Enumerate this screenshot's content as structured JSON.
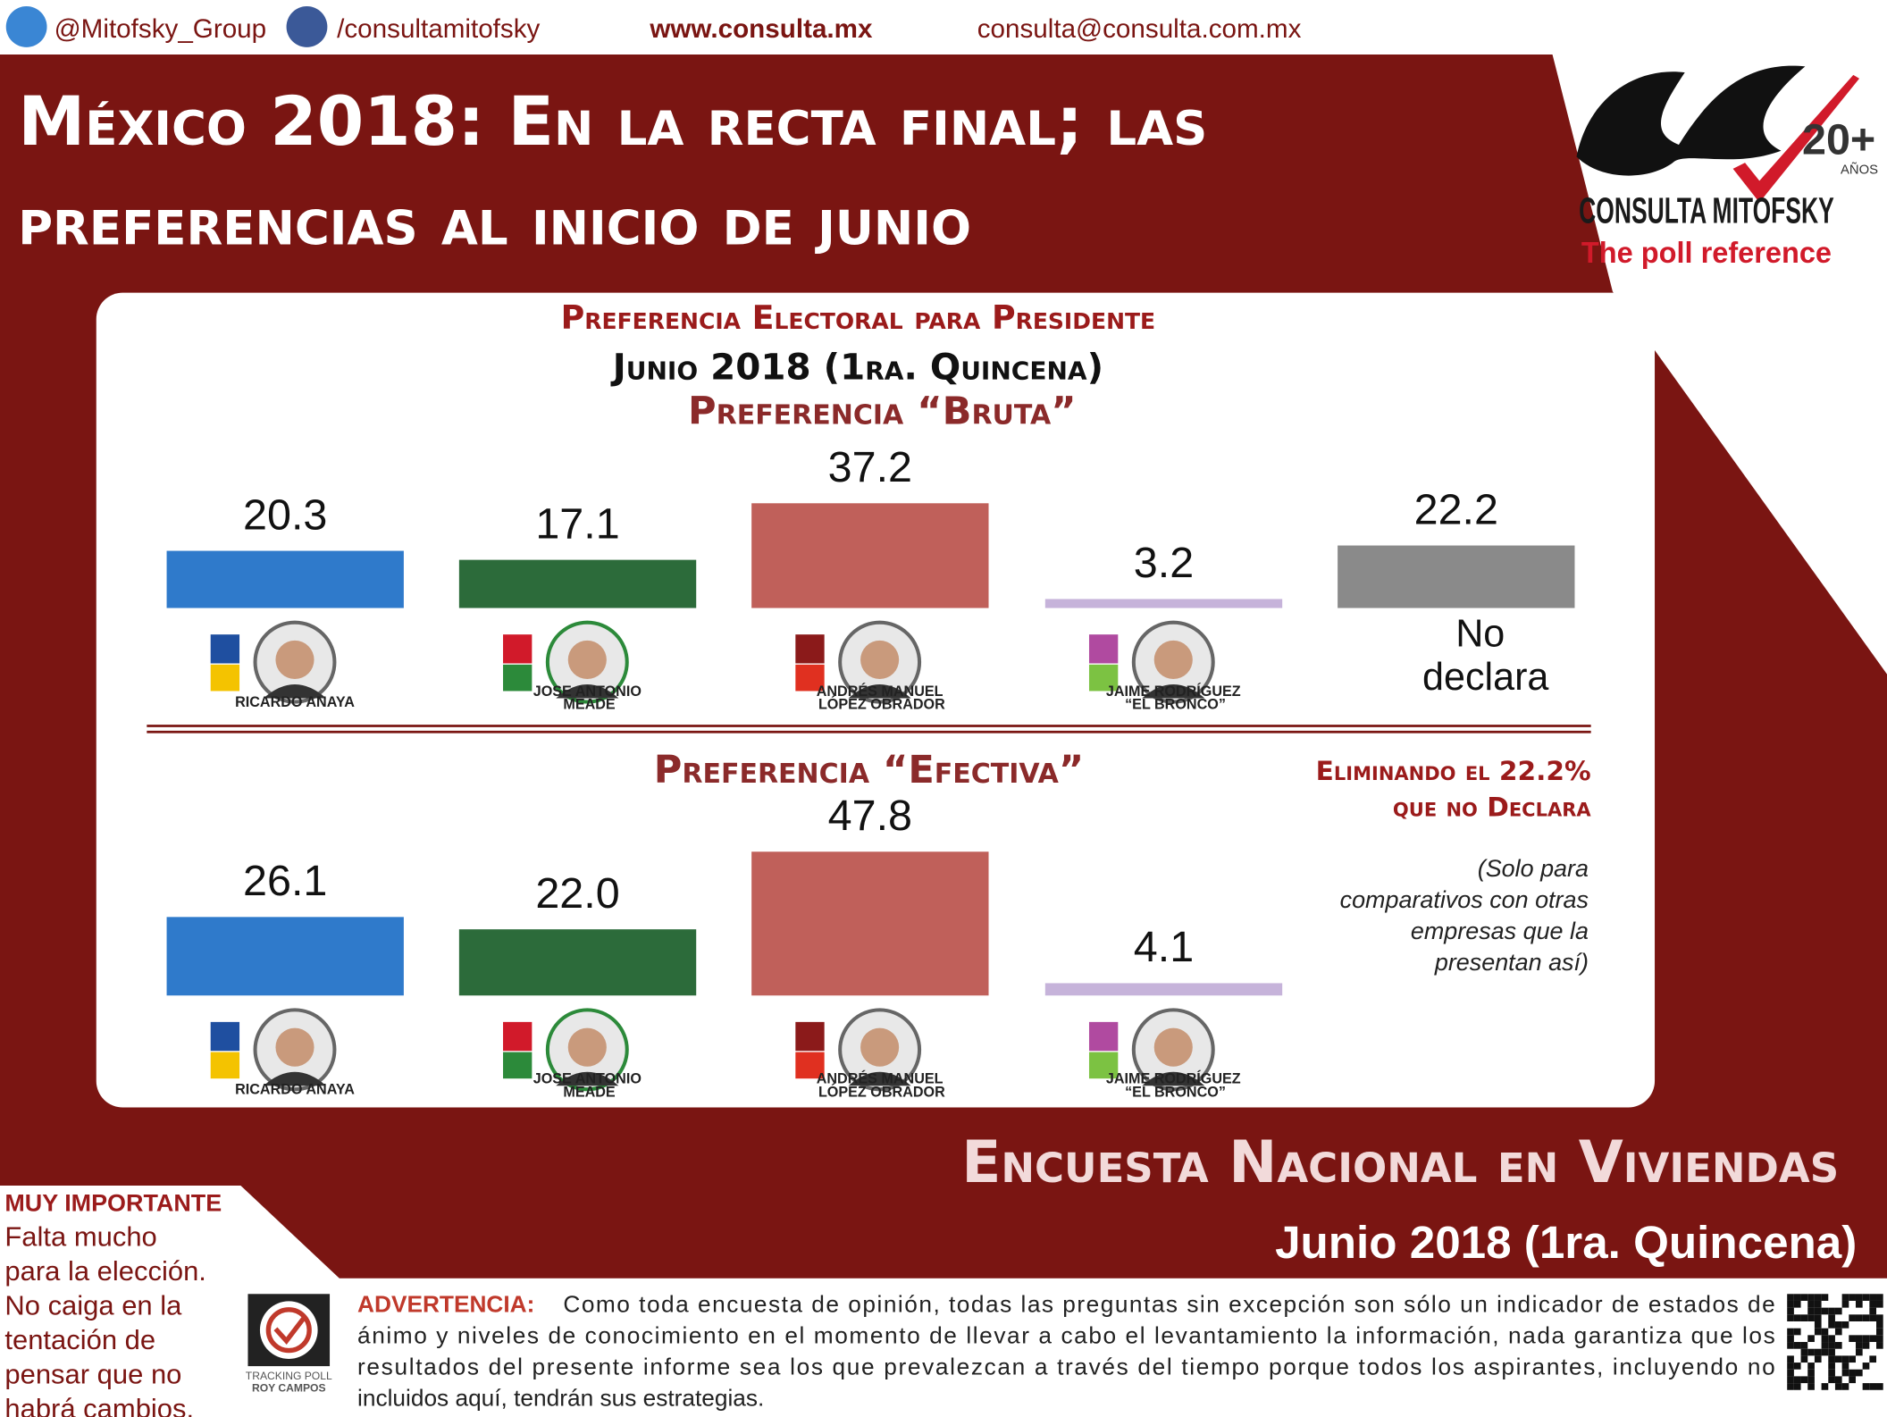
{
  "header": {
    "twitter": "@Mitofsky_Group",
    "facebook": "/consultamitofsky",
    "website": "www.consulta.mx",
    "email": "consulta@consulta.com.mx"
  },
  "title": [
    "México 2018: En la recta final; las",
    "preferencias al inicio de junio"
  ],
  "logo": {
    "years": "20+",
    "years_label": "Años",
    "name": "CONSULTA MITOFSKY",
    "tagline": "The poll reference"
  },
  "panel": {
    "title": "Preferencia Electoral para Presidente",
    "period": "Junio 2018 (1ra. Quincena)"
  },
  "chart_data": [
    {
      "type": "bar",
      "title": "Preferencia “Bruta”",
      "categories": [
        "RICARDO ANAYA",
        "JOSE ANTONIO MEADE",
        "ANDRÉS MANUEL LÓPEZ OBRADOR",
        "JAIME RODRÍGUEZ “EL BRONCO”",
        "No declara"
      ],
      "values": [
        20.3,
        17.1,
        37.2,
        3.2,
        22.2
      ],
      "colors": [
        "#2f7acb",
        "#2c6b3a",
        "#c0605a",
        "#c6b3da",
        "#8a8a8a"
      ]
    },
    {
      "type": "bar",
      "title": "Preferencia “Efectiva”",
      "categories": [
        "RICARDO ANAYA",
        "JOSE ANTONIO MEADE",
        "ANDRÉS MANUEL LÓPEZ OBRADOR",
        "JAIME RODRÍGUEZ “EL BRONCO”"
      ],
      "values": [
        26.1,
        22,
        47.8,
        4.1
      ],
      "value_labels": [
        "26.1",
        "22.0",
        "47.8",
        "4.1"
      ],
      "colors": [
        "#2f7acb",
        "#2c6b3a",
        "#c0605a",
        "#c6b3da"
      ],
      "note": [
        "Eliminando el 22.2%",
        "que no Declara"
      ],
      "footnote": [
        "(Solo para",
        "comparativos con otras",
        "empresas que la",
        "presentan así)"
      ]
    }
  ],
  "footer": {
    "survey": "Encuesta Nacional en Viviendas",
    "period": "Junio 2018 (1ra. Quincena)"
  },
  "important": {
    "heading": "MUY IMPORTANTE",
    "lines": [
      "Falta mucho",
      "para la elección.",
      "No caiga en la",
      "tentación de",
      "pensar que no",
      "habrá cambios."
    ]
  },
  "tracking_logo": [
    "TRACKING POLL",
    "ROY CAMPOS"
  ],
  "warning": {
    "label": "ADVERTENCIA:",
    "lines": [
      "Como toda encuesta de opinión, todas las preguntas sin excepción son sólo un indicador de estados de",
      "ánimo y niveles de conocimiento en el momento de llevar a cabo el levantamiento la información, nada garantiza que los",
      "resultados del presente informe sea los que prevalezcan a través del tiempo porque todos los aspirantes, incluyendo no",
      "incluidos aquí, tendrán sus estrategias."
    ]
  }
}
